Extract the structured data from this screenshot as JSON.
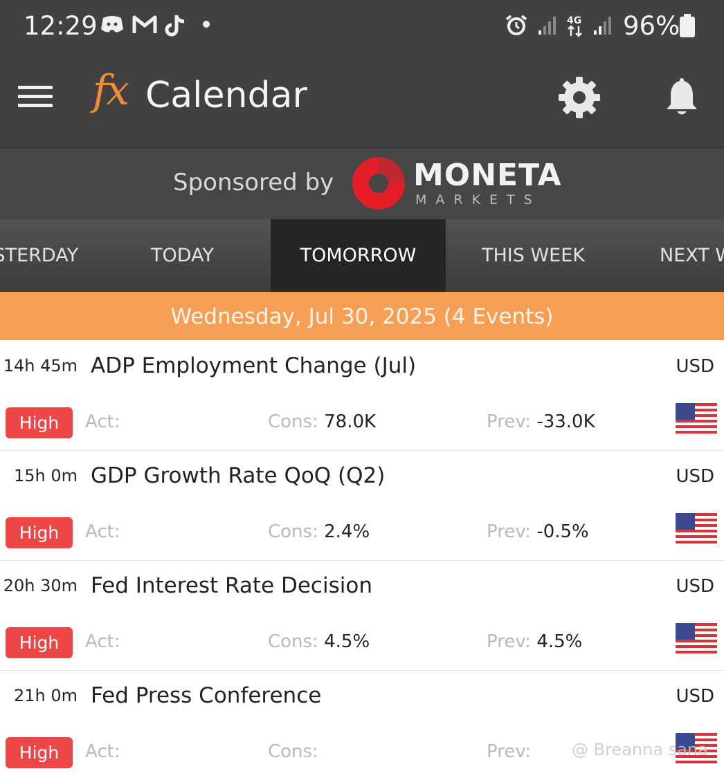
{
  "status_bar": {
    "time": "12:29",
    "battery": "96%",
    "network": "4G"
  },
  "app_bar": {
    "logo": "fx",
    "title": "Calendar"
  },
  "sponsor": {
    "text": "Sponsored by",
    "brand": "MONETA",
    "brand_sub": "MARKETS"
  },
  "tabs": [
    {
      "label": "YESTERDAY"
    },
    {
      "label": "TODAY"
    },
    {
      "label": "TOMORROW"
    },
    {
      "label": "THIS WEEK"
    },
    {
      "label": "NEXT WEEK"
    }
  ],
  "date_header": "Wednesday, Jul 30, 2025 (4 Events)",
  "labels": {
    "actual": "Act:",
    "consensus": "Cons:",
    "previous": "Prev:"
  },
  "events": [
    {
      "time": "14h 45m",
      "title": "ADP Employment Change (Jul)",
      "currency": "USD",
      "impact": "High",
      "actual": "",
      "consensus": "78.0K",
      "previous": "-33.0K"
    },
    {
      "time": "15h 0m",
      "title": "GDP Growth Rate QoQ (Q2)",
      "currency": "USD",
      "impact": "High",
      "actual": "",
      "consensus": "2.4%",
      "previous": "-0.5%"
    },
    {
      "time": "20h 30m",
      "title": "Fed Interest Rate Decision",
      "currency": "USD",
      "impact": "High",
      "actual": "",
      "consensus": "4.5%",
      "previous": "4.5%"
    },
    {
      "time": "21h 0m",
      "title": "Fed Press Conference",
      "currency": "USD",
      "impact": "High",
      "actual": "",
      "consensus": "",
      "previous": ""
    }
  ],
  "watermark": "@ Breanna sana",
  "colors": {
    "appbar": "#414141",
    "accent": "#f08c34",
    "date_header": "#f59e55",
    "impact_high": "#ec4746",
    "active_tab": "#252525"
  }
}
